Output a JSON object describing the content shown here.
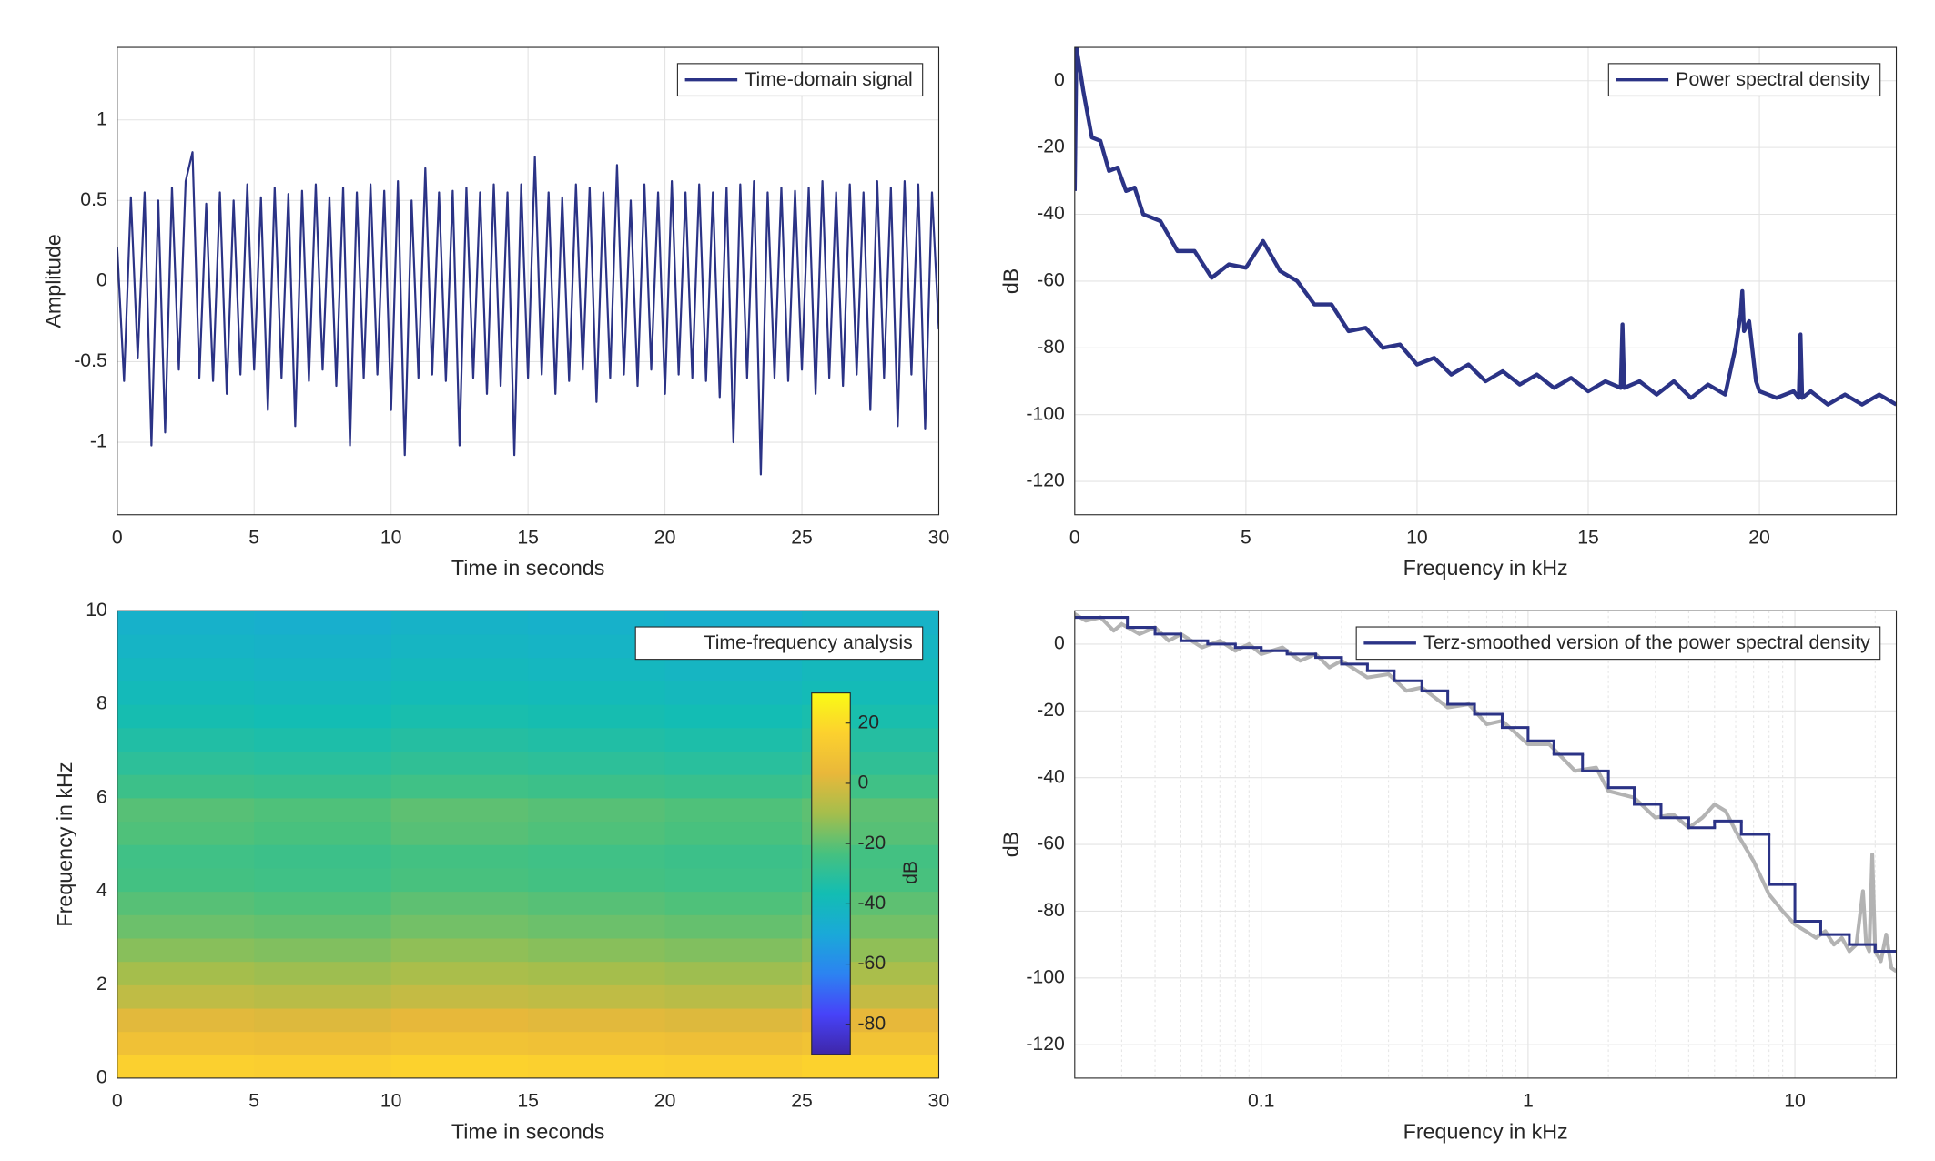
{
  "chart_data": [
    {
      "type": "line",
      "xlabel": "Time in seconds",
      "ylabel": "Amplitude",
      "xlim": [
        0,
        30
      ],
      "xticks": [
        0,
        5,
        10,
        15,
        20,
        25,
        30
      ],
      "ylim": [
        -1.45,
        1.45
      ],
      "yticks": [
        -1,
        -0.5,
        0,
        0.5,
        1
      ],
      "grid": true,
      "legend": "top-right",
      "series": [
        {
          "name": "Time-domain signal",
          "color": "#2b3386",
          "x": [
            0,
            0.25,
            0.5,
            0.75,
            1,
            1.25,
            1.5,
            1.75,
            2,
            2.25,
            2.5,
            2.75,
            3,
            3.25,
            3.5,
            3.75,
            4,
            4.25,
            4.5,
            4.75,
            5,
            5.25,
            5.5,
            5.75,
            6,
            6.25,
            6.5,
            6.75,
            7,
            7.25,
            7.5,
            7.75,
            8,
            8.25,
            8.5,
            8.75,
            9,
            9.25,
            9.5,
            9.75,
            10,
            10.25,
            10.5,
            10.75,
            11,
            11.25,
            11.5,
            11.75,
            12,
            12.25,
            12.5,
            12.75,
            13,
            13.25,
            13.5,
            13.75,
            14,
            14.25,
            14.5,
            14.75,
            15,
            15.25,
            15.5,
            15.75,
            16,
            16.25,
            16.5,
            16.75,
            17,
            17.25,
            17.5,
            17.75,
            18,
            18.25,
            18.5,
            18.75,
            19,
            19.25,
            19.5,
            19.75,
            20,
            20.25,
            20.5,
            20.75,
            21,
            21.25,
            21.5,
            21.75,
            22,
            22.25,
            22.5,
            22.75,
            23,
            23.25,
            23.5,
            23.75,
            24,
            24.25,
            24.5,
            24.75,
            25,
            25.25,
            25.5,
            25.75,
            26,
            26.25,
            26.5,
            26.75,
            27,
            27.25,
            27.5,
            27.75,
            28,
            28.25,
            28.5,
            28.75,
            29,
            29.25,
            29.5,
            29.75,
            30
          ],
          "values": [
            0.21,
            -0.62,
            0.52,
            -0.48,
            0.55,
            -1.02,
            0.5,
            -0.94,
            0.58,
            -0.55,
            0.62,
            0.8,
            -0.6,
            0.48,
            -0.62,
            0.55,
            -0.7,
            0.5,
            -0.58,
            0.6,
            -0.55,
            0.52,
            -0.8,
            0.58,
            -0.6,
            0.54,
            -0.9,
            0.56,
            -0.62,
            0.6,
            -0.55,
            0.52,
            -0.65,
            0.58,
            -1.02,
            0.55,
            -0.6,
            0.6,
            -0.58,
            0.56,
            -0.8,
            0.62,
            -1.08,
            0.5,
            -0.6,
            0.7,
            -0.58,
            0.55,
            -0.62,
            0.56,
            -1.02,
            0.58,
            -0.6,
            0.55,
            -0.7,
            0.6,
            -0.65,
            0.55,
            -1.08,
            0.6,
            -0.6,
            0.77,
            -0.58,
            0.55,
            -0.7,
            0.52,
            -0.62,
            0.6,
            -0.55,
            0.58,
            -0.75,
            0.55,
            -0.6,
            0.72,
            -0.58,
            0.5,
            -0.65,
            0.6,
            -0.55,
            0.55,
            -0.7,
            0.62,
            -0.58,
            0.55,
            -0.6,
            0.6,
            -0.62,
            0.55,
            -0.72,
            0.58,
            -1.0,
            0.6,
            -0.6,
            0.62,
            -1.2,
            0.55,
            -0.6,
            0.58,
            -0.62,
            0.56,
            -0.55,
            0.58,
            -0.7,
            0.62,
            -0.6,
            0.55,
            -0.65,
            0.6,
            -0.58,
            0.55,
            -0.8,
            0.62,
            -0.6,
            0.58,
            -0.9,
            0.62,
            -0.58,
            0.6,
            -0.92,
            0.55,
            -0.3
          ]
        }
      ]
    },
    {
      "type": "line",
      "xlabel": "Frequency in kHz",
      "ylabel": "dB",
      "xlim": [
        0,
        24
      ],
      "xticks": [
        0,
        5,
        10,
        15,
        20
      ],
      "ylim": [
        -130,
        10
      ],
      "yticks": [
        -120,
        -100,
        -80,
        -60,
        -40,
        -20,
        0
      ],
      "grid": true,
      "legend": "top-right",
      "series": [
        {
          "name": "Power spectral density",
          "color": "#2b3386",
          "x": [
            0,
            0.05,
            0.25,
            0.5,
            0.75,
            1,
            1.25,
            1.5,
            1.75,
            2,
            2.5,
            3,
            3.5,
            4,
            4.5,
            5,
            5.5,
            6,
            6.5,
            7,
            7.5,
            8,
            8.5,
            9,
            9.5,
            10,
            10.5,
            11,
            11.5,
            12,
            12.5,
            13,
            13.5,
            14,
            14.5,
            15,
            15.5,
            15.95,
            16,
            16.05,
            16.5,
            17,
            17.5,
            18,
            18.5,
            19,
            19.3,
            19.45,
            19.5,
            19.55,
            19.7,
            19.9,
            20,
            20.5,
            21,
            21.15,
            21.2,
            21.25,
            21.5,
            22,
            22.5,
            23,
            23.5,
            24
          ],
          "values": [
            -33,
            10,
            -3,
            -17,
            -18,
            -27,
            -26,
            -33,
            -32,
            -40,
            -42,
            -51,
            -51,
            -59,
            -55,
            -56,
            -48,
            -57,
            -60,
            -67,
            -67,
            -75,
            -74,
            -80,
            -79,
            -85,
            -83,
            -88,
            -85,
            -90,
            -87,
            -91,
            -88,
            -92,
            -89,
            -93,
            -90,
            -92,
            -73,
            -92,
            -90,
            -94,
            -90,
            -95,
            -91,
            -94,
            -80,
            -70,
            -63,
            -75,
            -72,
            -90,
            -93,
            -95,
            -93,
            -95,
            -76,
            -95,
            -93,
            -97,
            -94,
            -97,
            -94,
            -97
          ]
        }
      ]
    },
    {
      "type": "heatmap",
      "xlabel": "Time in seconds",
      "ylabel": "Frequency in kHz",
      "name": "Time-frequency analysis",
      "xlim": [
        0,
        30
      ],
      "xticks": [
        0,
        5,
        10,
        15,
        20,
        25,
        30
      ],
      "ylim": [
        0,
        10
      ],
      "yticks": [
        0,
        2,
        4,
        6,
        8,
        10
      ],
      "grid": false,
      "legend": "top-right",
      "xbins": [
        0,
        5,
        10,
        15,
        20,
        25,
        30
      ],
      "ybins": [
        0,
        0.5,
        1,
        1.5,
        2,
        2.5,
        3,
        3.5,
        4,
        4.5,
        5,
        5.5,
        6,
        6.5,
        7,
        7.5,
        8,
        8.5,
        9,
        9.5,
        10
      ],
      "values": [
        [
          16,
          15,
          17,
          16,
          15,
          17
        ],
        [
          8,
          7,
          9,
          8,
          7,
          9
        ],
        [
          2,
          1,
          3,
          2,
          1,
          3
        ],
        [
          -5,
          -6,
          -4,
          -5,
          -6,
          -4
        ],
        [
          -10,
          -11,
          -9,
          -10,
          -11,
          -9
        ],
        [
          -14,
          -15,
          -13,
          -14,
          -15,
          -13
        ],
        [
          -18,
          -19,
          -17,
          -18,
          -19,
          -17
        ],
        [
          -21,
          -22,
          -20,
          -21,
          -22,
          -20
        ],
        [
          -24,
          -25,
          -23,
          -24,
          -25,
          -23
        ],
        [
          -25,
          -26,
          -24,
          -25,
          -26,
          -24
        ],
        [
          -22,
          -23,
          -21,
          -22,
          -23,
          -21
        ],
        [
          -21,
          -22,
          -20,
          -21,
          -22,
          -20
        ],
        [
          -26,
          -27,
          -25,
          -26,
          -27,
          -25
        ],
        [
          -30,
          -31,
          -29,
          -30,
          -31,
          -29
        ],
        [
          -33,
          -34,
          -32,
          -33,
          -34,
          -32
        ],
        [
          -36,
          -37,
          -35,
          -36,
          -37,
          -35
        ],
        [
          -39,
          -40,
          -38,
          -39,
          -40,
          -38
        ],
        [
          -41,
          -42,
          -40,
          -41,
          -42,
          -40
        ],
        [
          -43,
          -44,
          -42,
          -43,
          -44,
          -42
        ],
        [
          -45,
          -46,
          -44,
          -45,
          -46,
          -44
        ]
      ],
      "clim": [
        -90,
        30
      ],
      "cticks": [
        -80,
        -60,
        -40,
        -20,
        0,
        20
      ],
      "clabel": "dB",
      "colormap": [
        "#3e26a8",
        "#4743f8",
        "#2c83f1",
        "#1aa9d8",
        "#13bdb3",
        "#46c17f",
        "#a5be4c",
        "#e9b83a",
        "#fcd12e",
        "#f9fb15"
      ]
    },
    {
      "type": "line",
      "xlabel": "Frequency in kHz",
      "ylabel": "dB",
      "xscale": "log",
      "xlim": [
        0.02,
        24
      ],
      "xticks": [
        0.1,
        1,
        10
      ],
      "xminorticks": [
        0.03,
        0.04,
        0.05,
        0.06,
        0.07,
        0.08,
        0.09,
        0.2,
        0.3,
        0.4,
        0.5,
        0.6,
        0.7,
        0.8,
        0.9,
        2,
        3,
        4,
        5,
        6,
        7,
        8,
        9,
        20
      ],
      "ylim": [
        -130,
        10
      ],
      "yticks": [
        -120,
        -100,
        -80,
        -60,
        -40,
        -20,
        0
      ],
      "grid": true,
      "legend": "top-right",
      "series": [
        {
          "color": "#b3b3b3",
          "x": [
            0.02,
            0.022,
            0.025,
            0.028,
            0.03,
            0.035,
            0.04,
            0.045,
            0.05,
            0.06,
            0.07,
            0.08,
            0.09,
            0.1,
            0.12,
            0.14,
            0.16,
            0.18,
            0.2,
            0.25,
            0.3,
            0.35,
            0.4,
            0.5,
            0.6,
            0.7,
            0.8,
            1,
            1.2,
            1.5,
            1.8,
            2,
            2.5,
            3,
            3.5,
            4,
            4.5,
            5,
            5.5,
            6,
            7,
            8,
            9,
            10,
            11,
            12,
            13,
            14,
            15,
            16,
            17,
            18,
            18.5,
            19,
            19.5,
            20,
            21,
            22,
            23,
            24
          ],
          "values": [
            9,
            7,
            8,
            4,
            6,
            3,
            5,
            1,
            3,
            -1,
            1,
            -2,
            0,
            -3,
            -1,
            -5,
            -3,
            -7,
            -5,
            -10,
            -9,
            -14,
            -13,
            -19,
            -18,
            -24,
            -23,
            -30,
            -30,
            -38,
            -37,
            -44,
            -46,
            -52,
            -51,
            -55,
            -52,
            -48,
            -50,
            -56,
            -65,
            -75,
            -80,
            -84,
            -86,
            -88,
            -86,
            -90,
            -88,
            -92,
            -90,
            -74,
            -90,
            -92,
            -63,
            -92,
            -95,
            -87,
            -97,
            -98
          ]
        },
        {
          "name": "Terz-smoothed version of the power spectral density",
          "color": "#2b3386",
          "step": "post",
          "x": [
            0.02,
            0.025,
            0.0315,
            0.04,
            0.05,
            0.063,
            0.08,
            0.1,
            0.125,
            0.16,
            0.2,
            0.25,
            0.315,
            0.4,
            0.5,
            0.63,
            0.8,
            1,
            1.25,
            1.6,
            2,
            2.5,
            3.15,
            4,
            5,
            6.3,
            8,
            10,
            12.5,
            16,
            20
          ],
          "values": [
            8,
            8,
            5,
            3,
            1,
            0,
            -1,
            -2,
            -3,
            -4,
            -6,
            -8,
            -11,
            -14,
            -18,
            -21,
            -25,
            -29,
            -33,
            -38,
            -43,
            -48,
            -52,
            -55,
            -53,
            -57,
            -72,
            -83,
            -87,
            -90,
            -92
          ]
        }
      ]
    }
  ]
}
